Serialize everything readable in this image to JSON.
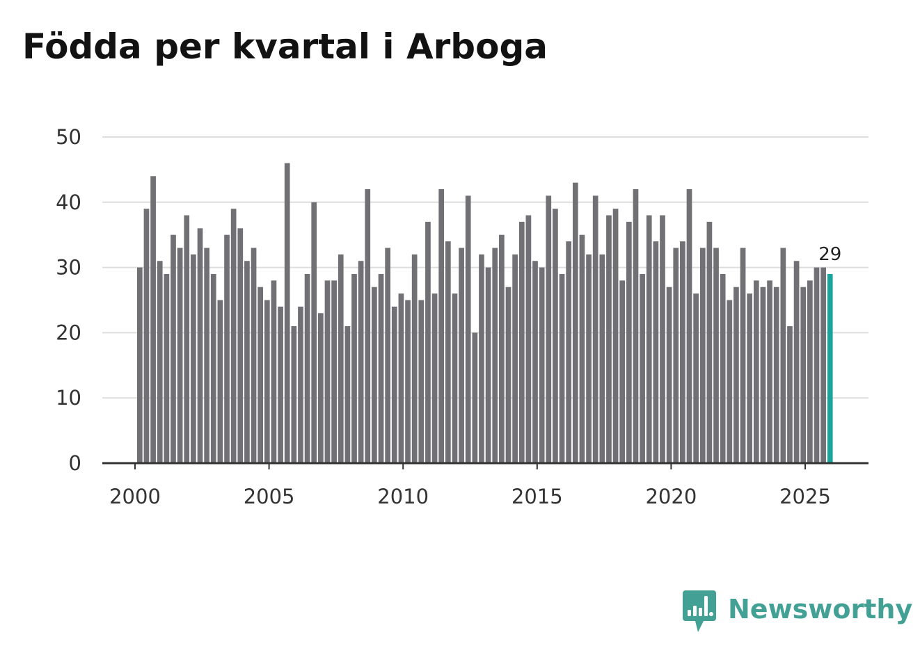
{
  "title": "Födda per kvartal i Arboga",
  "brand": {
    "name": "Newsworthy",
    "icon": "bar-chart-speech-bubble-icon",
    "color": "#42a094"
  },
  "colors": {
    "bar": "#717074",
    "highlight": "#1aa39a",
    "grid": "#dedede",
    "axis": "#333333"
  },
  "chart_data": {
    "type": "bar",
    "title": "Födda per kvartal i Arboga",
    "xlabel": "",
    "ylabel": "",
    "ylim": [
      0,
      50
    ],
    "y_ticks": [
      0,
      10,
      20,
      30,
      40,
      50
    ],
    "x_ticks": [
      2000,
      2005,
      2010,
      2015,
      2020,
      2025
    ],
    "x_start": 2000.0,
    "x_step": 0.25,
    "grid": true,
    "series": [
      {
        "name": "Födda per kvartal",
        "values": [
          30,
          39,
          44,
          31,
          29,
          35,
          33,
          38,
          32,
          36,
          33,
          29,
          25,
          35,
          39,
          36,
          31,
          33,
          27,
          25,
          28,
          24,
          46,
          21,
          24,
          29,
          40,
          23,
          28,
          28,
          32,
          21,
          29,
          31,
          42,
          27,
          29,
          33,
          24,
          26,
          25,
          32,
          25,
          37,
          26,
          42,
          34,
          26,
          33,
          41,
          20,
          32,
          30,
          33,
          35,
          27,
          32,
          37,
          38,
          31,
          30,
          41,
          39,
          29,
          34,
          43,
          35,
          32,
          41,
          32,
          38,
          39,
          28,
          37,
          42,
          29,
          38,
          34,
          38,
          27,
          33,
          34,
          42,
          26,
          33,
          37,
          33,
          29,
          25,
          27,
          33,
          26,
          28,
          27,
          28,
          27,
          33,
          21,
          31,
          27,
          28,
          30,
          30,
          29
        ]
      }
    ],
    "highlight_last": true,
    "last_value_label": "29"
  }
}
